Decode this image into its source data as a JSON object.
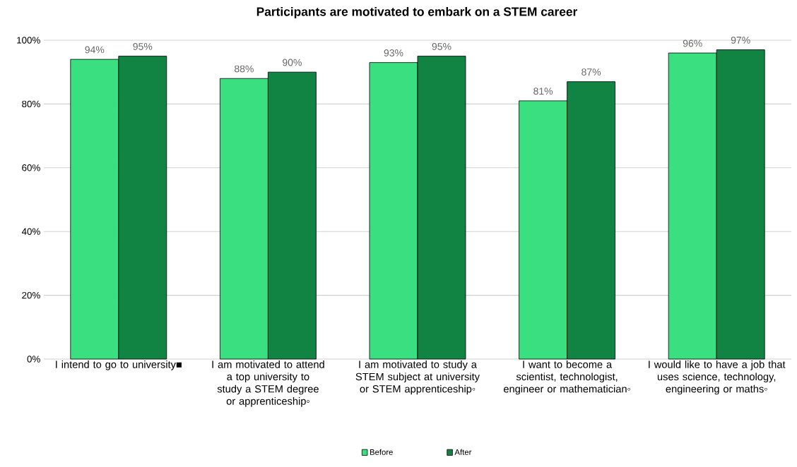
{
  "chart_data": {
    "type": "bar",
    "title": "Participants  are motivated to embark on a STEM career",
    "categories": [
      "I intend to go to university■",
      "I am motivated to attend a top university to study a STEM degree or apprenticeship◦",
      "I am motivated to study a STEM subject at university or STEM apprenticeship◦",
      "I want to become a scientist, technologist, engineer or mathematician◦",
      "I would like to have a job that uses science, technology, engineering or maths◦"
    ],
    "series": [
      {
        "name": "Before",
        "color": "#3ae07f",
        "values": [
          94,
          88,
          93,
          81,
          96
        ],
        "value_labels": [
          "94%",
          "88%",
          "93%",
          "81%",
          "96%"
        ]
      },
      {
        "name": "After",
        "color": "#118444",
        "values": [
          95,
          90,
          95,
          87,
          97
        ],
        "value_labels": [
          "95%",
          "90%",
          "95%",
          "87%",
          "97%"
        ]
      }
    ],
    "ylim": [
      0,
      100
    ],
    "yticks": [
      {
        "value": 0,
        "label": "0%"
      },
      {
        "value": 20,
        "label": "20%"
      },
      {
        "value": 40,
        "label": "40%"
      },
      {
        "value": 60,
        "label": "60%"
      },
      {
        "value": 80,
        "label": "80%"
      },
      {
        "value": 100,
        "label": "100%"
      }
    ],
    "grid": "y",
    "legend": "bottom"
  }
}
